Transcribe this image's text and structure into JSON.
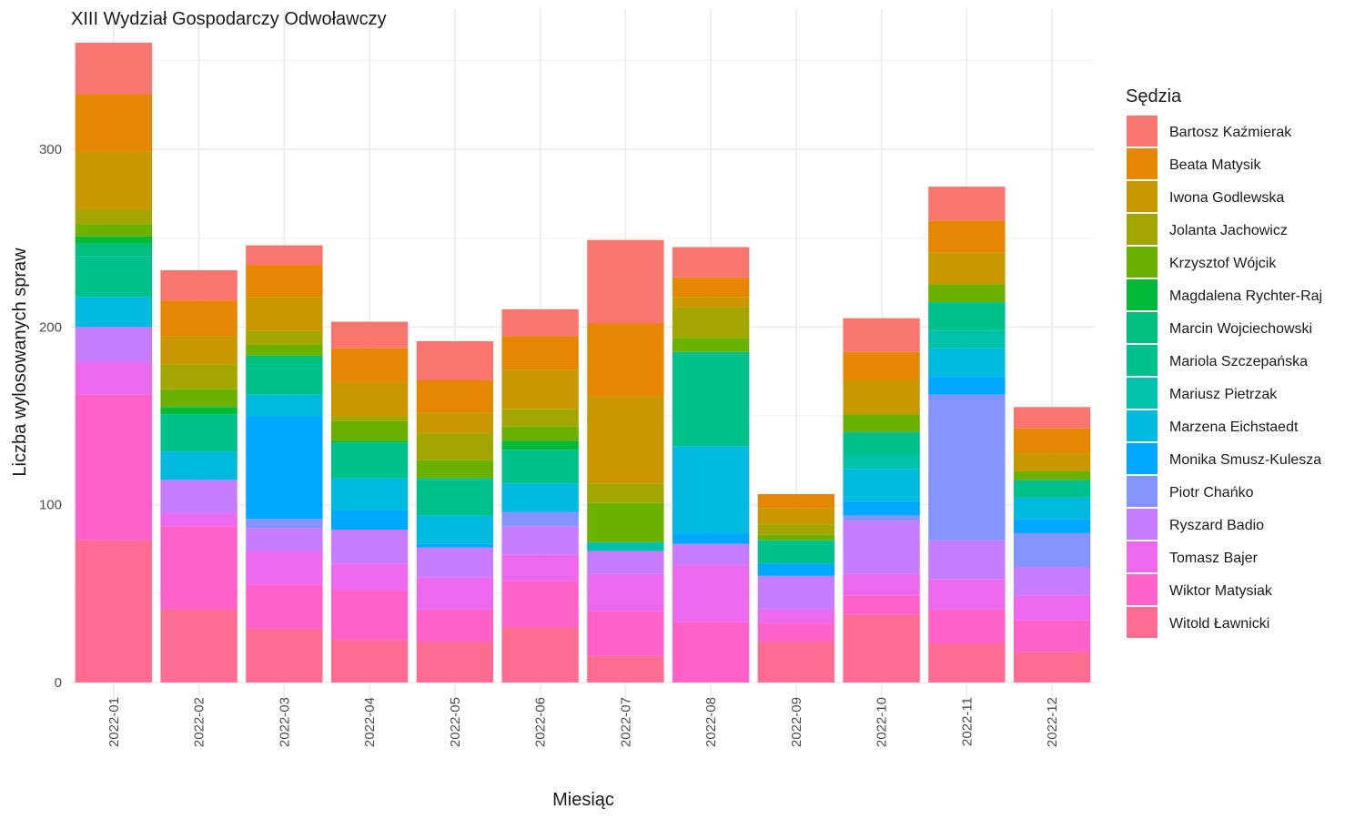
{
  "chart_data": {
    "type": "bar",
    "stacked": true,
    "title": "XIII Wydział Gospodarczy Odwoławczy",
    "xlabel": "Miesiąc",
    "ylabel": "Liczba wylosowanych spraw",
    "ylim": [
      0,
      365
    ],
    "yticks": [
      0,
      100,
      200,
      300
    ],
    "grid": true,
    "legend_title": "Sędzia",
    "legend_position": "right",
    "categories": [
      "2022-01",
      "2022-02",
      "2022-03",
      "2022-04",
      "2022-05",
      "2022-06",
      "2022-07",
      "2022-08",
      "2022-09",
      "2022-10",
      "2022-11",
      "2022-12"
    ],
    "series": [
      {
        "name": "Bartosz Kaźmierak",
        "color": "#F8766D",
        "values": [
          29,
          17,
          11,
          15,
          22,
          15,
          47,
          17,
          0,
          19,
          19,
          12
        ]
      },
      {
        "name": "Beata Matysik",
        "color": "#E58700",
        "values": [
          32,
          20,
          18,
          19,
          18,
          19,
          41,
          11,
          8,
          16,
          18,
          14
        ]
      },
      {
        "name": "Iwona Godlewska",
        "color": "#C99800",
        "values": [
          33,
          16,
          19,
          19,
          12,
          22,
          49,
          6,
          9,
          19,
          18,
          10
        ]
      },
      {
        "name": "Jolanta Jachowicz",
        "color": "#A3A500",
        "values": [
          8,
          14,
          8,
          3,
          15,
          10,
          11,
          17,
          6,
          0,
          0,
          0
        ]
      },
      {
        "name": "Krzysztof Wójcik",
        "color": "#6BB100",
        "values": [
          7,
          10,
          6,
          11,
          10,
          8,
          22,
          8,
          3,
          10,
          10,
          5
        ]
      },
      {
        "name": "Magdalena Rychter-Raj",
        "color": "#00BA38",
        "values": [
          4,
          4,
          0,
          1,
          0,
          5,
          0,
          0,
          0,
          0,
          0,
          0
        ]
      },
      {
        "name": "Marcin Wojciechowski",
        "color": "#00BF7D",
        "values": [
          7,
          0,
          5,
          0,
          1,
          0,
          0,
          0,
          0,
          0,
          0,
          0
        ]
      },
      {
        "name": "Mariola Szczepańska",
        "color": "#00C08B",
        "values": [
          23,
          21,
          17,
          20,
          20,
          19,
          0,
          53,
          13,
          13,
          16,
          10
        ]
      },
      {
        "name": "Mariusz Pietrzak",
        "color": "#00C1AA",
        "values": [
          0,
          0,
          0,
          0,
          0,
          0,
          5,
          0,
          0,
          8,
          10,
          0
        ]
      },
      {
        "name": "Marzena Eichstaedt",
        "color": "#00BAE0",
        "values": [
          17,
          16,
          12,
          18,
          16,
          16,
          0,
          49,
          0,
          18,
          16,
          12
        ]
      },
      {
        "name": "Monika Smusz-Kulesza",
        "color": "#00A9FF",
        "values": [
          0,
          0,
          58,
          11,
          2,
          0,
          0,
          6,
          7,
          8,
          10,
          8
        ]
      },
      {
        "name": "Piotr Chańko",
        "color": "#8494FF",
        "values": [
          0,
          0,
          5,
          0,
          0,
          8,
          0,
          0,
          0,
          3,
          82,
          19
        ]
      },
      {
        "name": "Ryszard Badio",
        "color": "#C77CFF",
        "values": [
          20,
          19,
          13,
          19,
          17,
          16,
          13,
          12,
          19,
          30,
          22,
          16
        ]
      },
      {
        "name": "Tomasz Bajer",
        "color": "#ED68ED",
        "values": [
          18,
          7,
          19,
          15,
          18,
          15,
          21,
          32,
          8,
          12,
          17,
          14
        ]
      },
      {
        "name": "Wiktor Matysiak",
        "color": "#FF61C9",
        "values": [
          82,
          47,
          25,
          28,
          18,
          26,
          25,
          34,
          10,
          11,
          19,
          18
        ]
      },
      {
        "name": "Witold Ławnicki",
        "color": "#FF6C91",
        "values": [
          80,
          41,
          30,
          24,
          23,
          31,
          15,
          0,
          23,
          38,
          22,
          17
        ]
      }
    ]
  }
}
